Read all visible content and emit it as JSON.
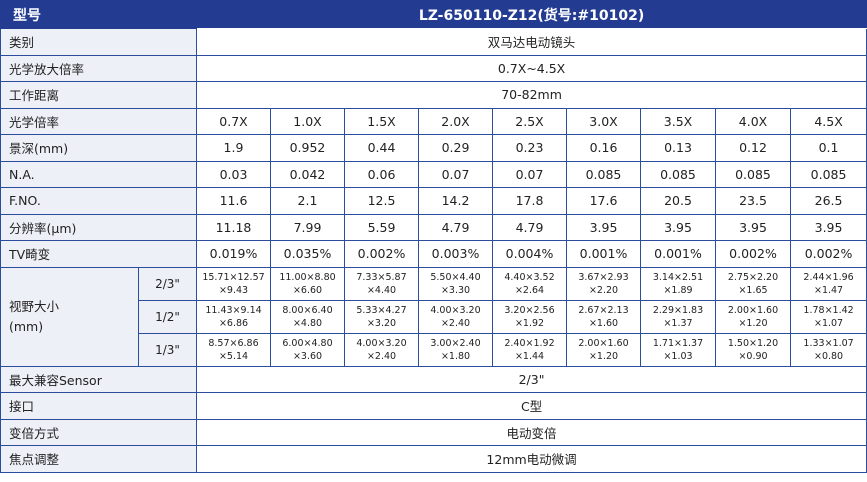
{
  "header": {
    "label": "型号",
    "model": "LZ-650110-Z12(货号:#10102)"
  },
  "rows_single": {
    "category": {
      "label": "类别",
      "value": "双马达电动镜头"
    },
    "zoom_ratio": {
      "label": "光学放大倍率",
      "value": "0.7X~4.5X"
    },
    "working_distance": {
      "label": "工作距离",
      "value": "70-82mm"
    }
  },
  "magnification": {
    "label": "光学倍率",
    "values": [
      "0.7X",
      "1.0X",
      "1.5X",
      "2.0X",
      "2.5X",
      "3.0X",
      "3.5X",
      "4.0X",
      "4.5X"
    ]
  },
  "depth_of_field": {
    "label": "景深(mm)",
    "values": [
      "1.9",
      "0.952",
      "0.44",
      "0.29",
      "0.23",
      "0.16",
      "0.13",
      "0.12",
      "0.1"
    ]
  },
  "na": {
    "label": "N.A.",
    "values": [
      "0.03",
      "0.042",
      "0.06",
      "0.07",
      "0.07",
      "0.085",
      "0.085",
      "0.085",
      "0.085"
    ]
  },
  "fno": {
    "label": "F.NO.",
    "values": [
      "11.6",
      "2.1",
      "12.5",
      "14.2",
      "17.8",
      "17.6",
      "20.5",
      "23.5",
      "26.5"
    ]
  },
  "resolution": {
    "label": "分辨率(µm)",
    "values": [
      "11.18",
      "7.99",
      "5.59",
      "4.79",
      "4.79",
      "3.95",
      "3.95",
      "3.95",
      "3.95"
    ]
  },
  "tv_distortion": {
    "label": "TV畸变",
    "values": [
      "0.019%",
      "0.035%",
      "0.002%",
      "0.003%",
      "0.004%",
      "0.001%",
      "0.001%",
      "0.002%",
      "0.002%"
    ]
  },
  "field_of_view": {
    "label_line1": "视野大小",
    "label_line2": "(mm)",
    "sensors": [
      {
        "size": "2/3\"",
        "values": [
          [
            "15.71×12.57",
            "×9.43"
          ],
          [
            "11.00×8.80",
            "×6.60"
          ],
          [
            "7.33×5.87",
            "×4.40"
          ],
          [
            "5.50×4.40",
            "×3.30"
          ],
          [
            "4.40×3.52",
            "×2.64"
          ],
          [
            "3.67×2.93",
            "×2.20"
          ],
          [
            "3.14×2.51",
            "×1.89"
          ],
          [
            "2.75×2.20",
            "×1.65"
          ],
          [
            "2.44×1.96",
            "×1.47"
          ]
        ]
      },
      {
        "size": "1/2\"",
        "values": [
          [
            "11.43×9.14",
            "×6.86"
          ],
          [
            "8.00×6.40",
            "×4.80"
          ],
          [
            "5.33×4.27",
            "×3.20"
          ],
          [
            "4.00×3.20",
            "×2.40"
          ],
          [
            "3.20×2.56",
            "×1.92"
          ],
          [
            "2.67×2.13",
            "×1.60"
          ],
          [
            "2.29×1.83",
            "×1.37"
          ],
          [
            "2.00×1.60",
            "×1.20"
          ],
          [
            "1.78×1.42",
            "×1.07"
          ]
        ]
      },
      {
        "size": "1/3\"",
        "values": [
          [
            "8.57×6.86",
            "×5.14"
          ],
          [
            "6.00×4.80",
            "×3.60"
          ],
          [
            "4.00×3.20",
            "×2.40"
          ],
          [
            "3.00×2.40",
            "×1.80"
          ],
          [
            "2.40×1.92",
            "×1.44"
          ],
          [
            "2.00×1.60",
            "×1.20"
          ],
          [
            "1.71×1.37",
            "×1.03"
          ],
          [
            "1.50×1.20",
            "×0.90"
          ],
          [
            "1.33×1.07",
            "×0.80"
          ]
        ]
      }
    ]
  },
  "rows_bottom": {
    "max_sensor": {
      "label": "最大兼容Sensor",
      "value": "2/3\""
    },
    "mount": {
      "label": "接口",
      "value": "C型"
    },
    "zoom_method": {
      "label": "变倍方式",
      "value": "电动变倍"
    },
    "focus": {
      "label": "焦点调整",
      "value": "12mm电动微调"
    }
  },
  "colors": {
    "header_bg": "#233c92",
    "border": "#2b4e9c",
    "label_bg": "#eef0f8"
  }
}
